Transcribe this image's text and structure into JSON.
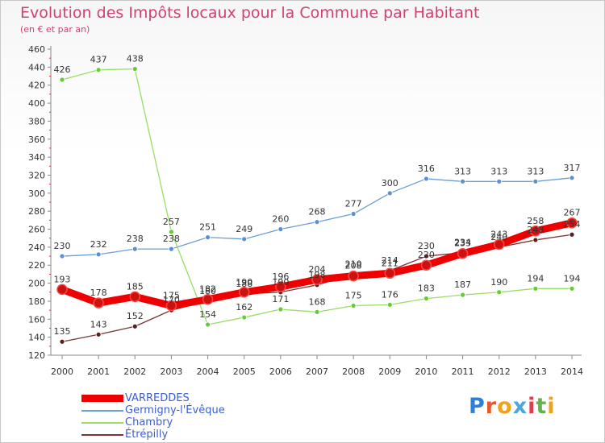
{
  "header": {
    "title": "Evolution des Impôts locaux pour la Commune par Habitant",
    "subtitle": "(en € et par an)"
  },
  "logo": {
    "text": "Proxiti"
  },
  "chart_data": {
    "type": "line",
    "title": "Evolution des Impôts locaux pour la Commune par Habitant",
    "subtitle": "(en € et par an)",
    "xlabel": "",
    "ylabel": "",
    "x": [
      "2000",
      "2001",
      "2002",
      "2003",
      "2004",
      "2005",
      "2006",
      "2007",
      "2008",
      "2009",
      "2010",
      "2011",
      "2012",
      "2013",
      "2014"
    ],
    "ylim": [
      120,
      460
    ],
    "yticks": [
      120,
      140,
      160,
      180,
      200,
      220,
      240,
      260,
      280,
      300,
      320,
      340,
      360,
      380,
      400,
      420,
      440,
      460
    ],
    "grid": false,
    "legend_position": "bottom-left",
    "series": [
      {
        "name": "VARREDDES",
        "color": "#ee0000",
        "marker": "#cc1111",
        "values": [
          193,
          178,
          185,
          175,
          182,
          190,
          196,
          204,
          208,
          211,
          220,
          233,
          243,
          258,
          267
        ],
        "labels": [
          193,
          178,
          185,
          175,
          182,
          190,
          196,
          204,
          208,
          211,
          220,
          233,
          243,
          258,
          267
        ]
      },
      {
        "name": "Germigny-l'Évêque",
        "color": "#6a9ed8",
        "marker": "#5b8fd0",
        "values": [
          230,
          232,
          238,
          238,
          251,
          249,
          260,
          268,
          277,
          300,
          316,
          313,
          313,
          313,
          317
        ],
        "labels": [
          230,
          232,
          238,
          238,
          251,
          249,
          260,
          268,
          277,
          300,
          316,
          313,
          313,
          313,
          317
        ]
      },
      {
        "name": "Chambry",
        "color": "#99dd66",
        "marker": "#66cc33",
        "values": [
          426,
          437,
          438,
          257,
          154,
          162,
          171,
          168,
          175,
          176,
          183,
          187,
          190,
          194,
          194
        ],
        "labels": [
          426,
          437,
          438,
          257,
          154,
          162,
          171,
          168,
          175,
          176,
          183,
          187,
          190,
          194,
          194
        ]
      },
      {
        "name": "Étrépilly",
        "color": "#7b3535",
        "marker": "#5a1e1e",
        "values": [
          135,
          143,
          152,
          170,
          180,
          188,
          190,
          198,
          210,
          214,
          230,
          234,
          240,
          248,
          254
        ],
        "labels": [
          135,
          143,
          152,
          170,
          180,
          188,
          190,
          198,
          210,
          214,
          230,
          234,
          240,
          248,
          254
        ]
      }
    ]
  }
}
